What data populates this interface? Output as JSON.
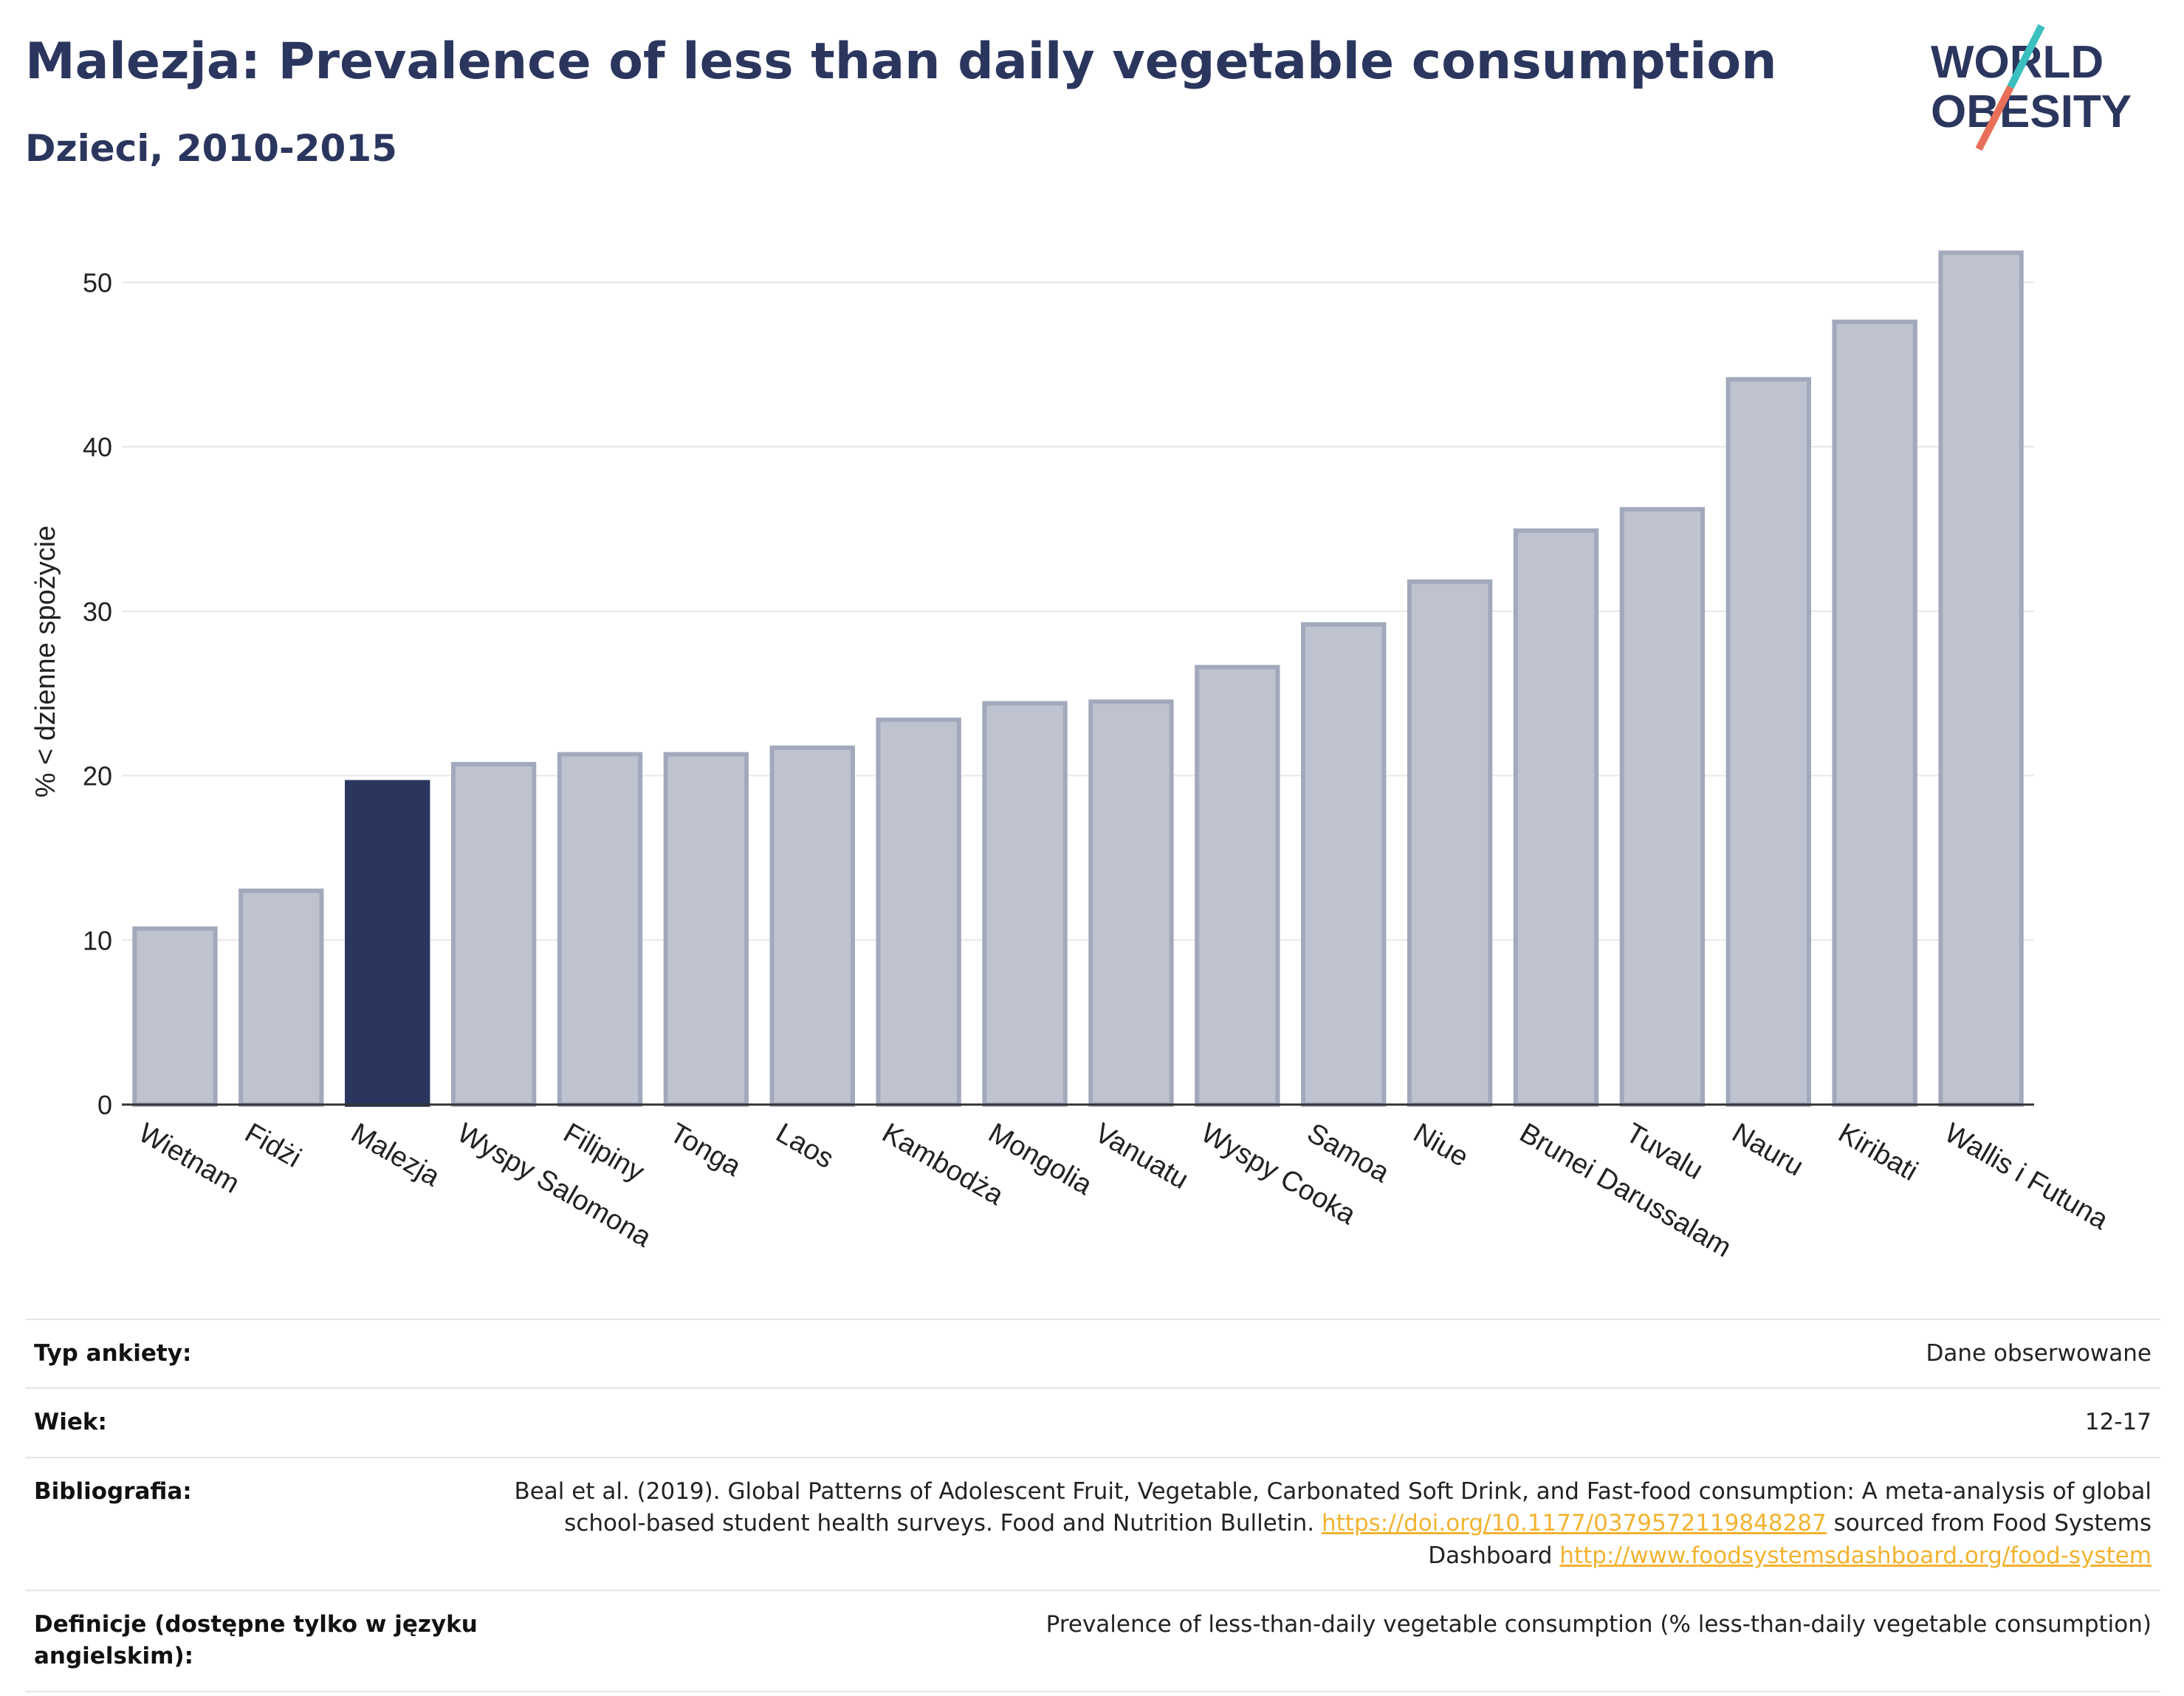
{
  "header": {
    "title": "Malezja: Prevalence of less than daily vegetable consumption",
    "subtitle": "Dzieci, 2010-2015"
  },
  "logo": {
    "line1": "WORLD",
    "line2": "OBESITY",
    "accent_teal": "#3bbfbf",
    "accent_coral": "#e8705a"
  },
  "chart_data": {
    "type": "bar",
    "ylabel": "% < dzienne spożycie",
    "ylim": [
      0,
      55
    ],
    "yticks": [
      0,
      10,
      20,
      30,
      40,
      50
    ],
    "grid": true,
    "highlight_category": "Malezja",
    "colors": {
      "bar": "#bfc3d0",
      "bar_edge": "#a3a9bc",
      "highlight": "#2b365f",
      "grid": "#e8e8e8",
      "axis": "#333333"
    },
    "categories": [
      "Wietnam",
      "Fidżi",
      "Malezja",
      "Wyspy Salomona",
      "Filipiny",
      "Tonga",
      "Laos",
      "Kambodża",
      "Mongolia",
      "Vanuatu",
      "Wyspy Cooka",
      "Samoa",
      "Niue",
      "Brunei Darussalam",
      "Tuvalu",
      "Nauru",
      "Kiribati",
      "Wallis i Futuna"
    ],
    "values": [
      10.7,
      13.0,
      19.6,
      20.7,
      21.3,
      21.3,
      21.7,
      23.4,
      24.4,
      24.5,
      26.6,
      29.2,
      31.8,
      34.9,
      36.2,
      44.1,
      47.6,
      51.8
    ]
  },
  "meta": {
    "survey_type_label": "Typ ankiety:",
    "survey_type_value": "Dane obserwowane",
    "age_label": "Wiek:",
    "age_value": "12-17",
    "bibliography_label": "Bibliografia:",
    "bibliography_text_1": "Beal et al. (2019). Global Patterns of Adolescent Fruit, Vegetable, Carbonated Soft Drink, and Fast-food consumption: A meta-analysis of global school-based student health surveys. Food and Nutrition Bulletin.",
    "bibliography_link_1": "https://doi.org/10.1177/0379572119848287",
    "bibliography_text_2": "sourced from Food Systems Dashboard",
    "bibliography_link_2": "http://www.foodsystemsdashboard.org/food-system",
    "definitions_label": "Definicje (dostępne tylko w języku angielskim):",
    "definitions_value": "Prevalence of less-than-daily vegetable consumption (% less-than-daily vegetable consumption)"
  }
}
